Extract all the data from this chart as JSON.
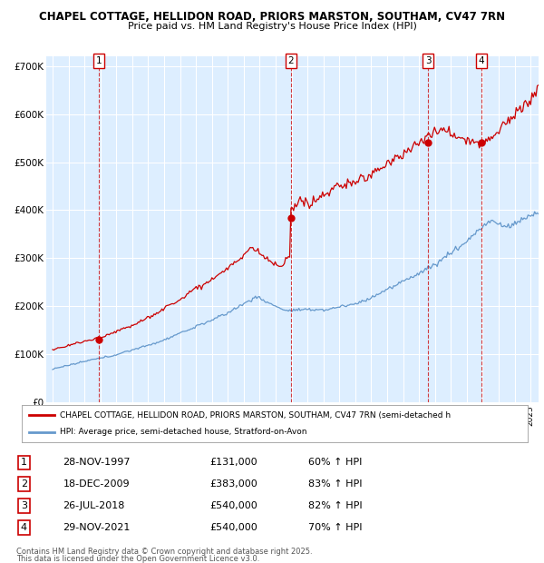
{
  "title": "CHAPEL COTTAGE, HELLIDON ROAD, PRIORS MARSTON, SOUTHAM, CV47 7RN",
  "subtitle": "Price paid vs. HM Land Registry's House Price Index (HPI)",
  "ylim": [
    0,
    720000
  ],
  "yticks": [
    0,
    100000,
    200000,
    300000,
    400000,
    500000,
    600000,
    700000
  ],
  "ytick_labels": [
    "£0",
    "£100K",
    "£200K",
    "£300K",
    "£400K",
    "£500K",
    "£600K",
    "£700K"
  ],
  "xlim_start": 1994.6,
  "xlim_end": 2025.5,
  "sales": [
    {
      "num": 1,
      "date": "28-NOV-1997",
      "price": 131000,
      "year": 1997.91,
      "pct": "60% ↑ HPI"
    },
    {
      "num": 2,
      "date": "18-DEC-2009",
      "price": 383000,
      "year": 2009.96,
      "pct": "83% ↑ HPI"
    },
    {
      "num": 3,
      "date": "26-JUL-2018",
      "price": 540000,
      "year": 2018.56,
      "pct": "82% ↑ HPI"
    },
    {
      "num": 4,
      "date": "29-NOV-2021",
      "price": 540000,
      "year": 2021.91,
      "pct": "70% ↑ HPI"
    }
  ],
  "legend_line1": "CHAPEL COTTAGE, HELLIDON ROAD, PRIORS MARSTON, SOUTHAM, CV47 7RN (semi-detached h",
  "legend_line2": "HPI: Average price, semi-detached house, Stratford-on-Avon",
  "footer_line1": "Contains HM Land Registry data © Crown copyright and database right 2025.",
  "footer_line2": "This data is licensed under the Open Government Licence v3.0.",
  "red_color": "#cc0000",
  "blue_color": "#6699cc",
  "bg_color": "#ddeeff",
  "grid_color": "#ffffff"
}
